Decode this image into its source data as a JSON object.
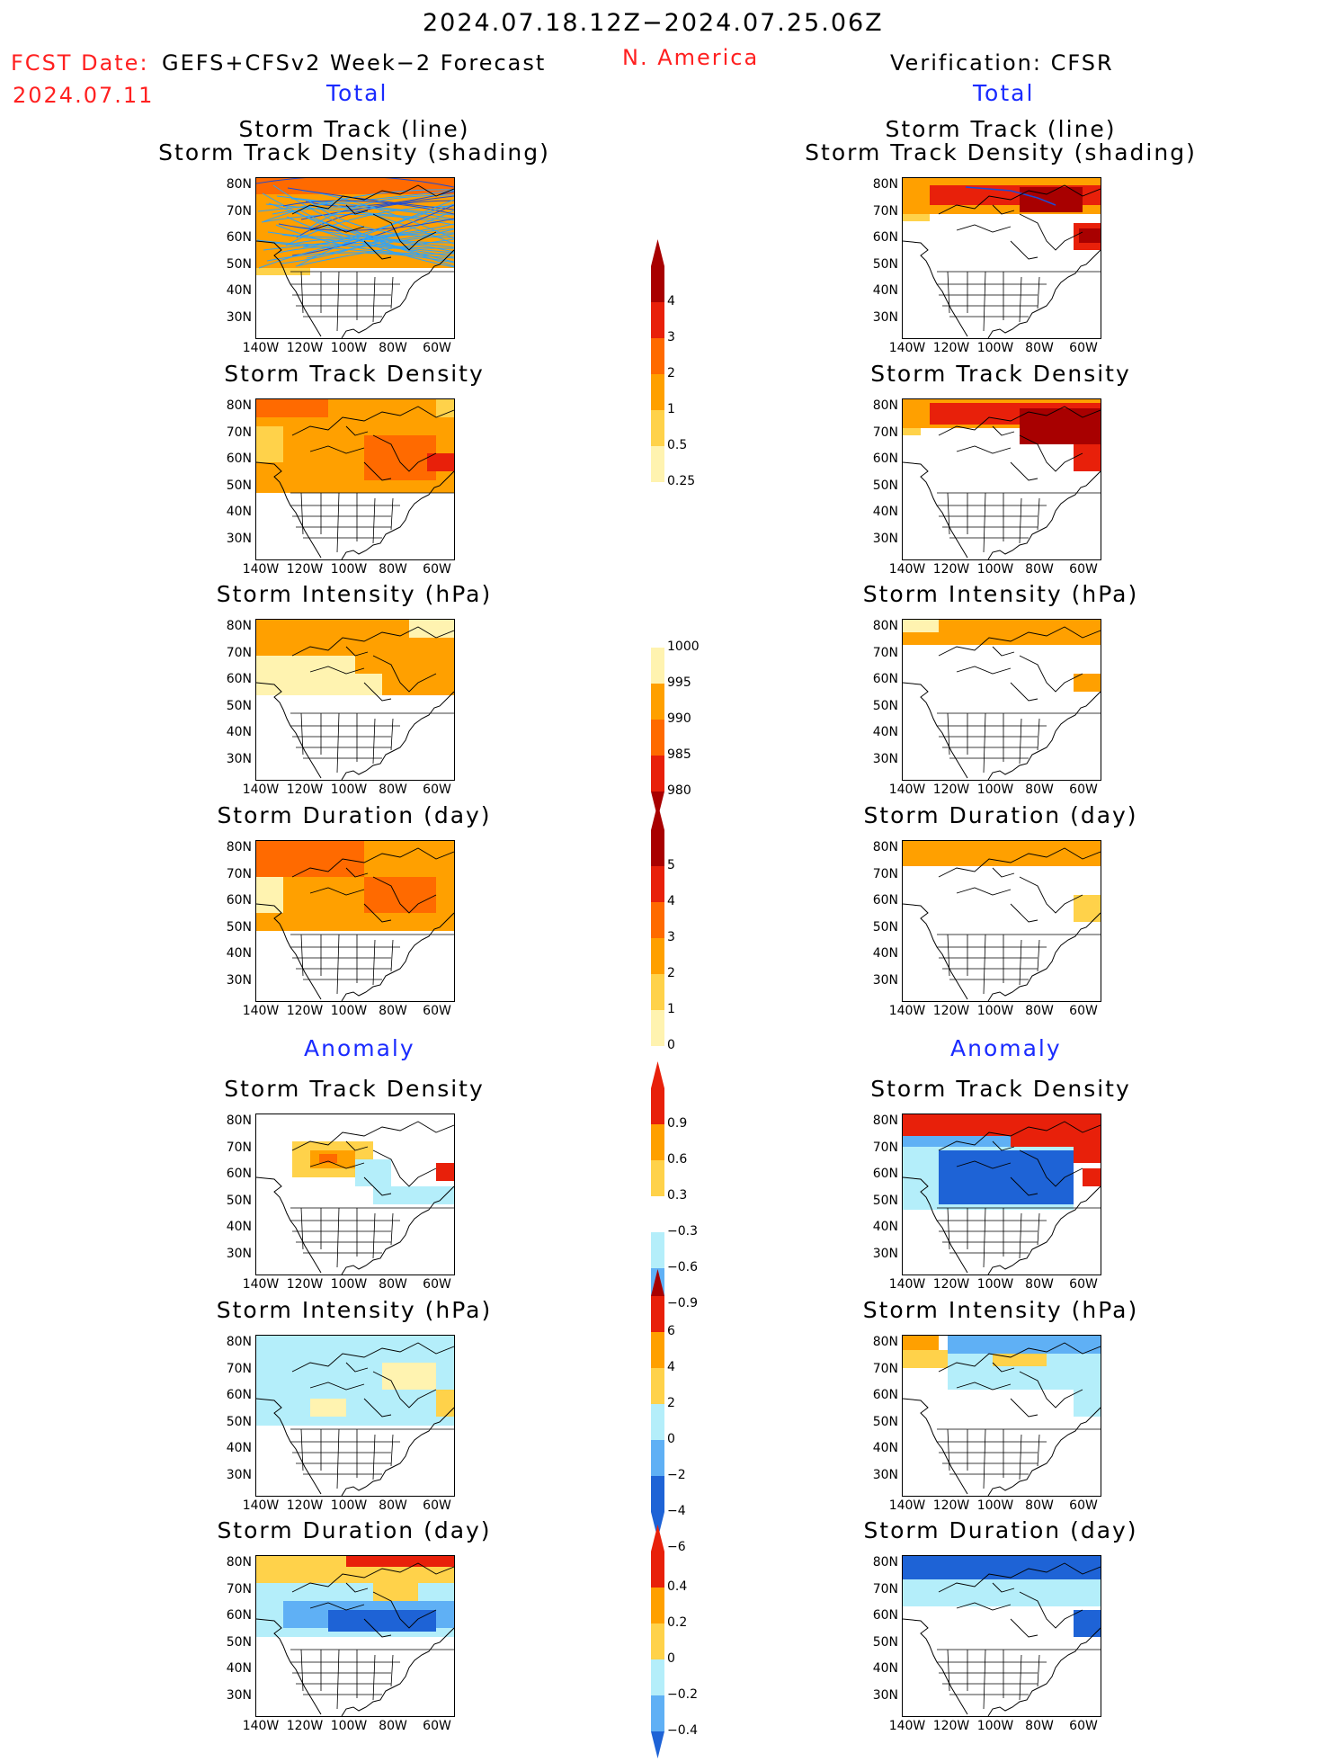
{
  "header": {
    "date_range": "2024.07.18.12Z−2024.07.25.06Z",
    "fcst_date_label": "FCST Date:",
    "fcst_date": "2024.07.11",
    "forecast_name": "GEFS+CFSv2 Week−2 Forecast",
    "region": "N. America",
    "verification": "Verification: CFSR"
  },
  "sections": {
    "total": "Total",
    "anomaly": "Anomaly"
  },
  "panel_titles": {
    "track_line": "Storm Track (line)",
    "track_density_shading": "Storm Track Density (shading)",
    "track_density": "Storm Track Density",
    "intensity": "Storm Intensity (hPa)",
    "duration": "Storm Duration (day)"
  },
  "axes": {
    "lat": [
      "80N",
      "70N",
      "60N",
      "50N",
      "40N",
      "30N"
    ],
    "lon": [
      "140W",
      "120W",
      "100W",
      "80W",
      "60W"
    ]
  },
  "colorbars": {
    "density_total": [
      "4",
      "3",
      "2",
      "1",
      "0.5",
      "0.25"
    ],
    "intensity_total": [
      "1000",
      "995",
      "990",
      "985",
      "980"
    ],
    "duration_total": [
      "5",
      "4",
      "3",
      "2",
      "1",
      "0"
    ],
    "density_anom": [
      "0.9",
      "0.6",
      "0.3",
      "−0.3",
      "−0.6",
      "−0.9"
    ],
    "intensity_anom": [
      "6",
      "4",
      "2",
      "0",
      "−2",
      "−4",
      "−6"
    ],
    "duration_anom": [
      "0.4",
      "0.2",
      "0",
      "−0.2",
      "−0.4"
    ]
  },
  "colors": {
    "title_blue": "#1a2bff",
    "fcst_red": "#ff2020",
    "pale_yellow": "#fff3b0",
    "light_orange": "#ffd24a",
    "orange": "#ffa000",
    "dark_orange": "#ff6a00",
    "red": "#e8200a",
    "dark_red": "#a80000",
    "light_blue": "#b4eefa",
    "mid_blue": "#5fb0f5",
    "blue": "#1e63d6"
  }
}
